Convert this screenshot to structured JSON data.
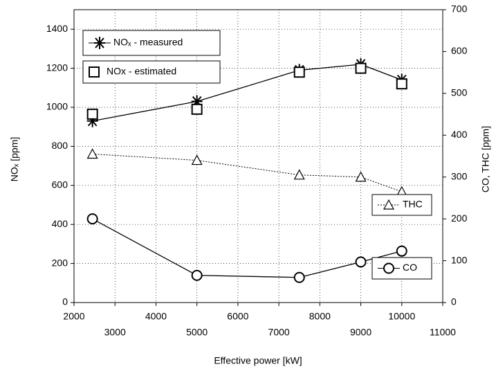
{
  "chart_data": {
    "type": "line",
    "x_label": "Effective power  [kW]",
    "y_label": "NOₓ  [ppm]",
    "y2_label": "CO,  THC  [ppm]",
    "x": [
      2450,
      5000,
      7500,
      9000,
      10000
    ],
    "xlim": [
      2000,
      11000
    ],
    "xticks": [
      2000,
      3000,
      4000,
      5000,
      6000,
      7000,
      8000,
      9000,
      10000,
      11000
    ],
    "ylim": [
      0,
      1500
    ],
    "yticks": [
      0,
      200,
      400,
      600,
      800,
      1000,
      1200,
      1400
    ],
    "y2lim": [
      0,
      700
    ],
    "y2ticks": [
      0,
      100,
      200,
      300,
      400,
      500,
      600,
      700
    ],
    "grid": true,
    "series": [
      {
        "name": "NOₓ - measured",
        "color": "#000000",
        "marker": "asterisk",
        "line": "solid",
        "values": [
          930,
          1030,
          1190,
          1220,
          1140
        ]
      },
      {
        "name": "NOx - estimated",
        "color": "#000000",
        "marker": "square",
        "line": "none",
        "values": [
          965,
          990,
          1180,
          1200,
          1120
        ]
      },
      {
        "name": "THC",
        "color": "#000000",
        "marker": "triangle",
        "line": "dotted",
        "axis": "y2",
        "values": [
          355,
          340,
          305,
          300,
          265
        ]
      },
      {
        "name": "CO",
        "color": "#000000",
        "marker": "circle",
        "line": "solid",
        "axis": "y2",
        "values": [
          200,
          65,
          60,
          97,
          123
        ]
      }
    ]
  }
}
